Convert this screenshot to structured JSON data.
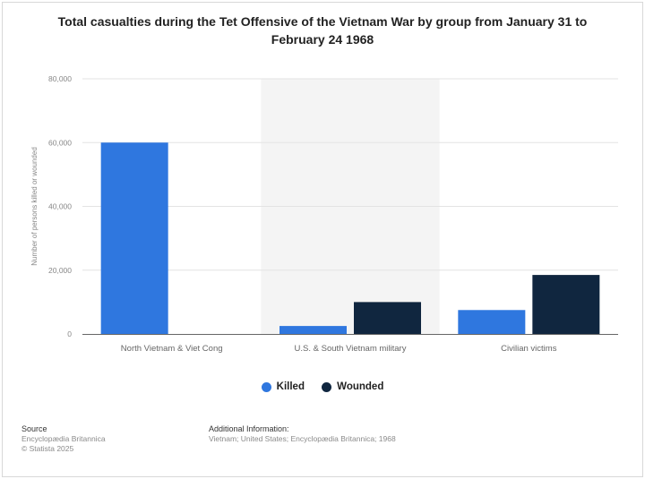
{
  "chart_data": {
    "type": "bar",
    "title": "Total casualties during the Tet Offensive of the Vietnam War by group from January 31 to February 24 1968",
    "ylabel": "Number of persons killed or wounded",
    "ylim": [
      0,
      80000
    ],
    "yticks": [
      0,
      20000,
      40000,
      60000,
      80000
    ],
    "ytick_labels": [
      "0",
      "20,000",
      "40,000",
      "60,000",
      "80,000"
    ],
    "categories": [
      "North Vietnam & Viet Cong",
      "U.S. & South Vietnam military",
      "Civilian victims"
    ],
    "series": [
      {
        "name": "Killed",
        "color": "#2f77df",
        "values": [
          60000,
          2500,
          7500
        ]
      },
      {
        "name": "Wounded",
        "color": "#10263f",
        "values": [
          0,
          10000,
          18500
        ]
      }
    ],
    "grid": true,
    "legend_position": "bottom",
    "highlighted_category": 1
  },
  "footer": {
    "source_heading": "Source",
    "source_lines": [
      "Encyclopædia Britannica",
      "© Statista 2025"
    ],
    "info_heading": "Additional Information:",
    "info_text": "Vietnam; United States; Encyclopædia Britannica; 1968"
  }
}
